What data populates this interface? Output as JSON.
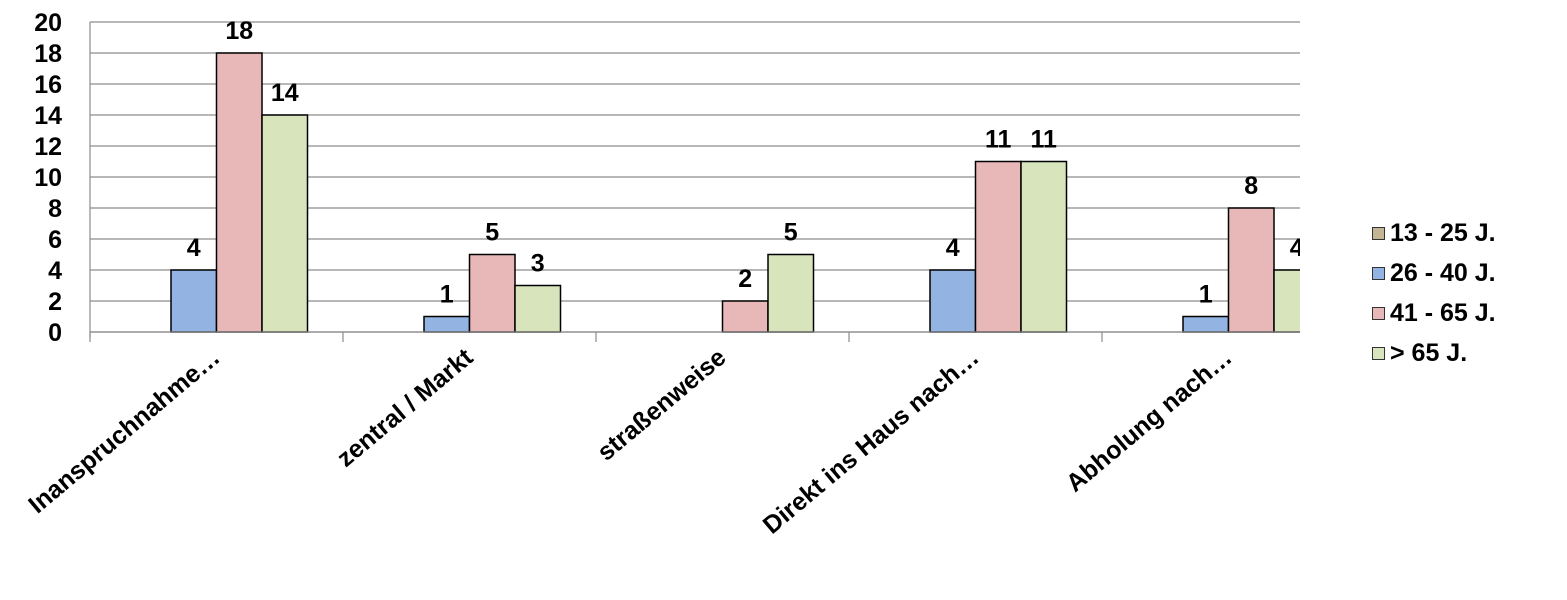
{
  "chart_data": {
    "type": "bar",
    "categories": [
      "Inanspruchnahme…",
      "zentral / Markt",
      "straßenweise",
      "Direkt ins Haus nach…",
      "Abholung nach…"
    ],
    "series": [
      {
        "name": "13 - 25 J.",
        "color": "#c4b594",
        "values": [
          null,
          null,
          null,
          null,
          null
        ]
      },
      {
        "name": "26 - 40 J.",
        "color": "#93b3e3",
        "values": [
          4,
          1,
          null,
          4,
          1
        ]
      },
      {
        "name": "41 - 65 J.",
        "color": "#e8b8b8",
        "values": [
          18,
          5,
          2,
          11,
          8
        ]
      },
      {
        "name": "> 65 J.",
        "color": "#d7e4bc",
        "values": [
          14,
          3,
          5,
          11,
          4
        ]
      }
    ],
    "ylim": [
      0,
      20
    ],
    "yticks": [
      "0",
      "2",
      "4",
      "6",
      "8",
      "10",
      "12",
      "14",
      "16",
      "18",
      "20"
    ],
    "grid": true,
    "legend_position": "right",
    "data_labels": true
  }
}
